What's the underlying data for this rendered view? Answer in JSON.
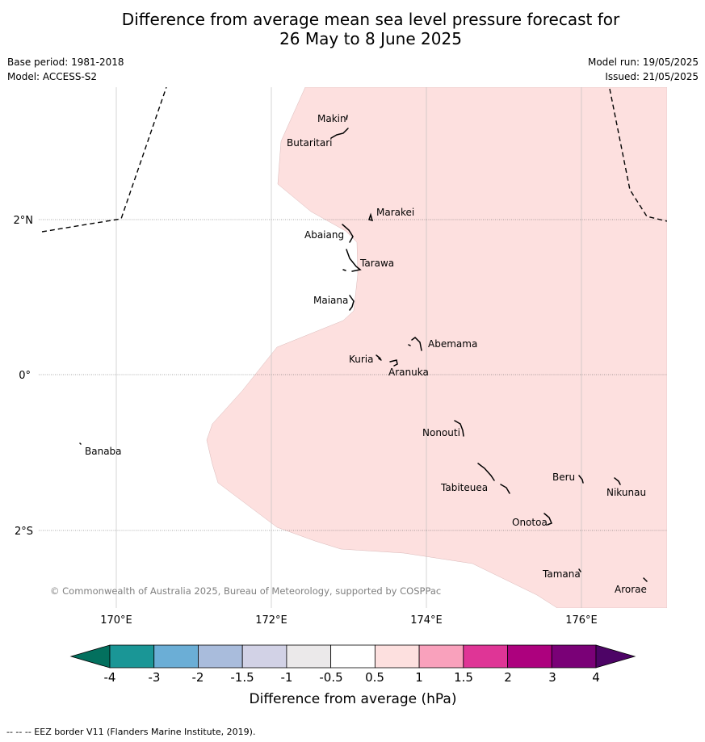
{
  "title": {
    "line1": "Difference from average mean sea level pressure forecast for",
    "line2": "26 May to 8 June 2025"
  },
  "meta": {
    "base_period": "Base period: 1981-2018",
    "model": "Model: ACCESS-S2",
    "model_run": "Model run: 19/05/2025",
    "issued": "Issued: 21/05/2025"
  },
  "map": {
    "copyright": "© Commonwealth of Australia 2025, Bureau of Meteorology, supported by COSPPac",
    "lon_ticks": [
      "170°E",
      "172°E",
      "174°E",
      "176°E"
    ],
    "lat_ticks": [
      "2°N",
      "0°",
      "2°S"
    ],
    "anomaly_region": {
      "category": "0.5 to 1",
      "color": "#fde0df"
    },
    "places": [
      "Makin",
      "Butaritari",
      "Marakei",
      "Abaiang",
      "Tarawa",
      "Maiana",
      "Abemama",
      "Kuria",
      "Aranuka",
      "Banaba",
      "Nonouti",
      "Tabiteuea",
      "Beru",
      "Nikunau",
      "Onotoa",
      "Tamana",
      "Arorae"
    ]
  },
  "colorbar": {
    "label": "Difference from average (hPa)",
    "ticks": [
      "-4",
      "-3",
      "-2",
      "-1.5",
      "-1",
      "-0.5",
      "0.5",
      "1",
      "1.5",
      "2",
      "3",
      "4"
    ],
    "colors": [
      "#1a9696",
      "#6baed6",
      "#a9bcdc",
      "#d2d2e6",
      "#ebe9ea",
      "#ffffff",
      "#fde0df",
      "#f9a1bc",
      "#df3596",
      "#ad017e",
      "#7a0177"
    ],
    "under_color": "#03705e",
    "over_color": "#4d0466"
  },
  "footer": "--  --  -- EEZ border V11 (Flanders Marine Institute, 2019)."
}
